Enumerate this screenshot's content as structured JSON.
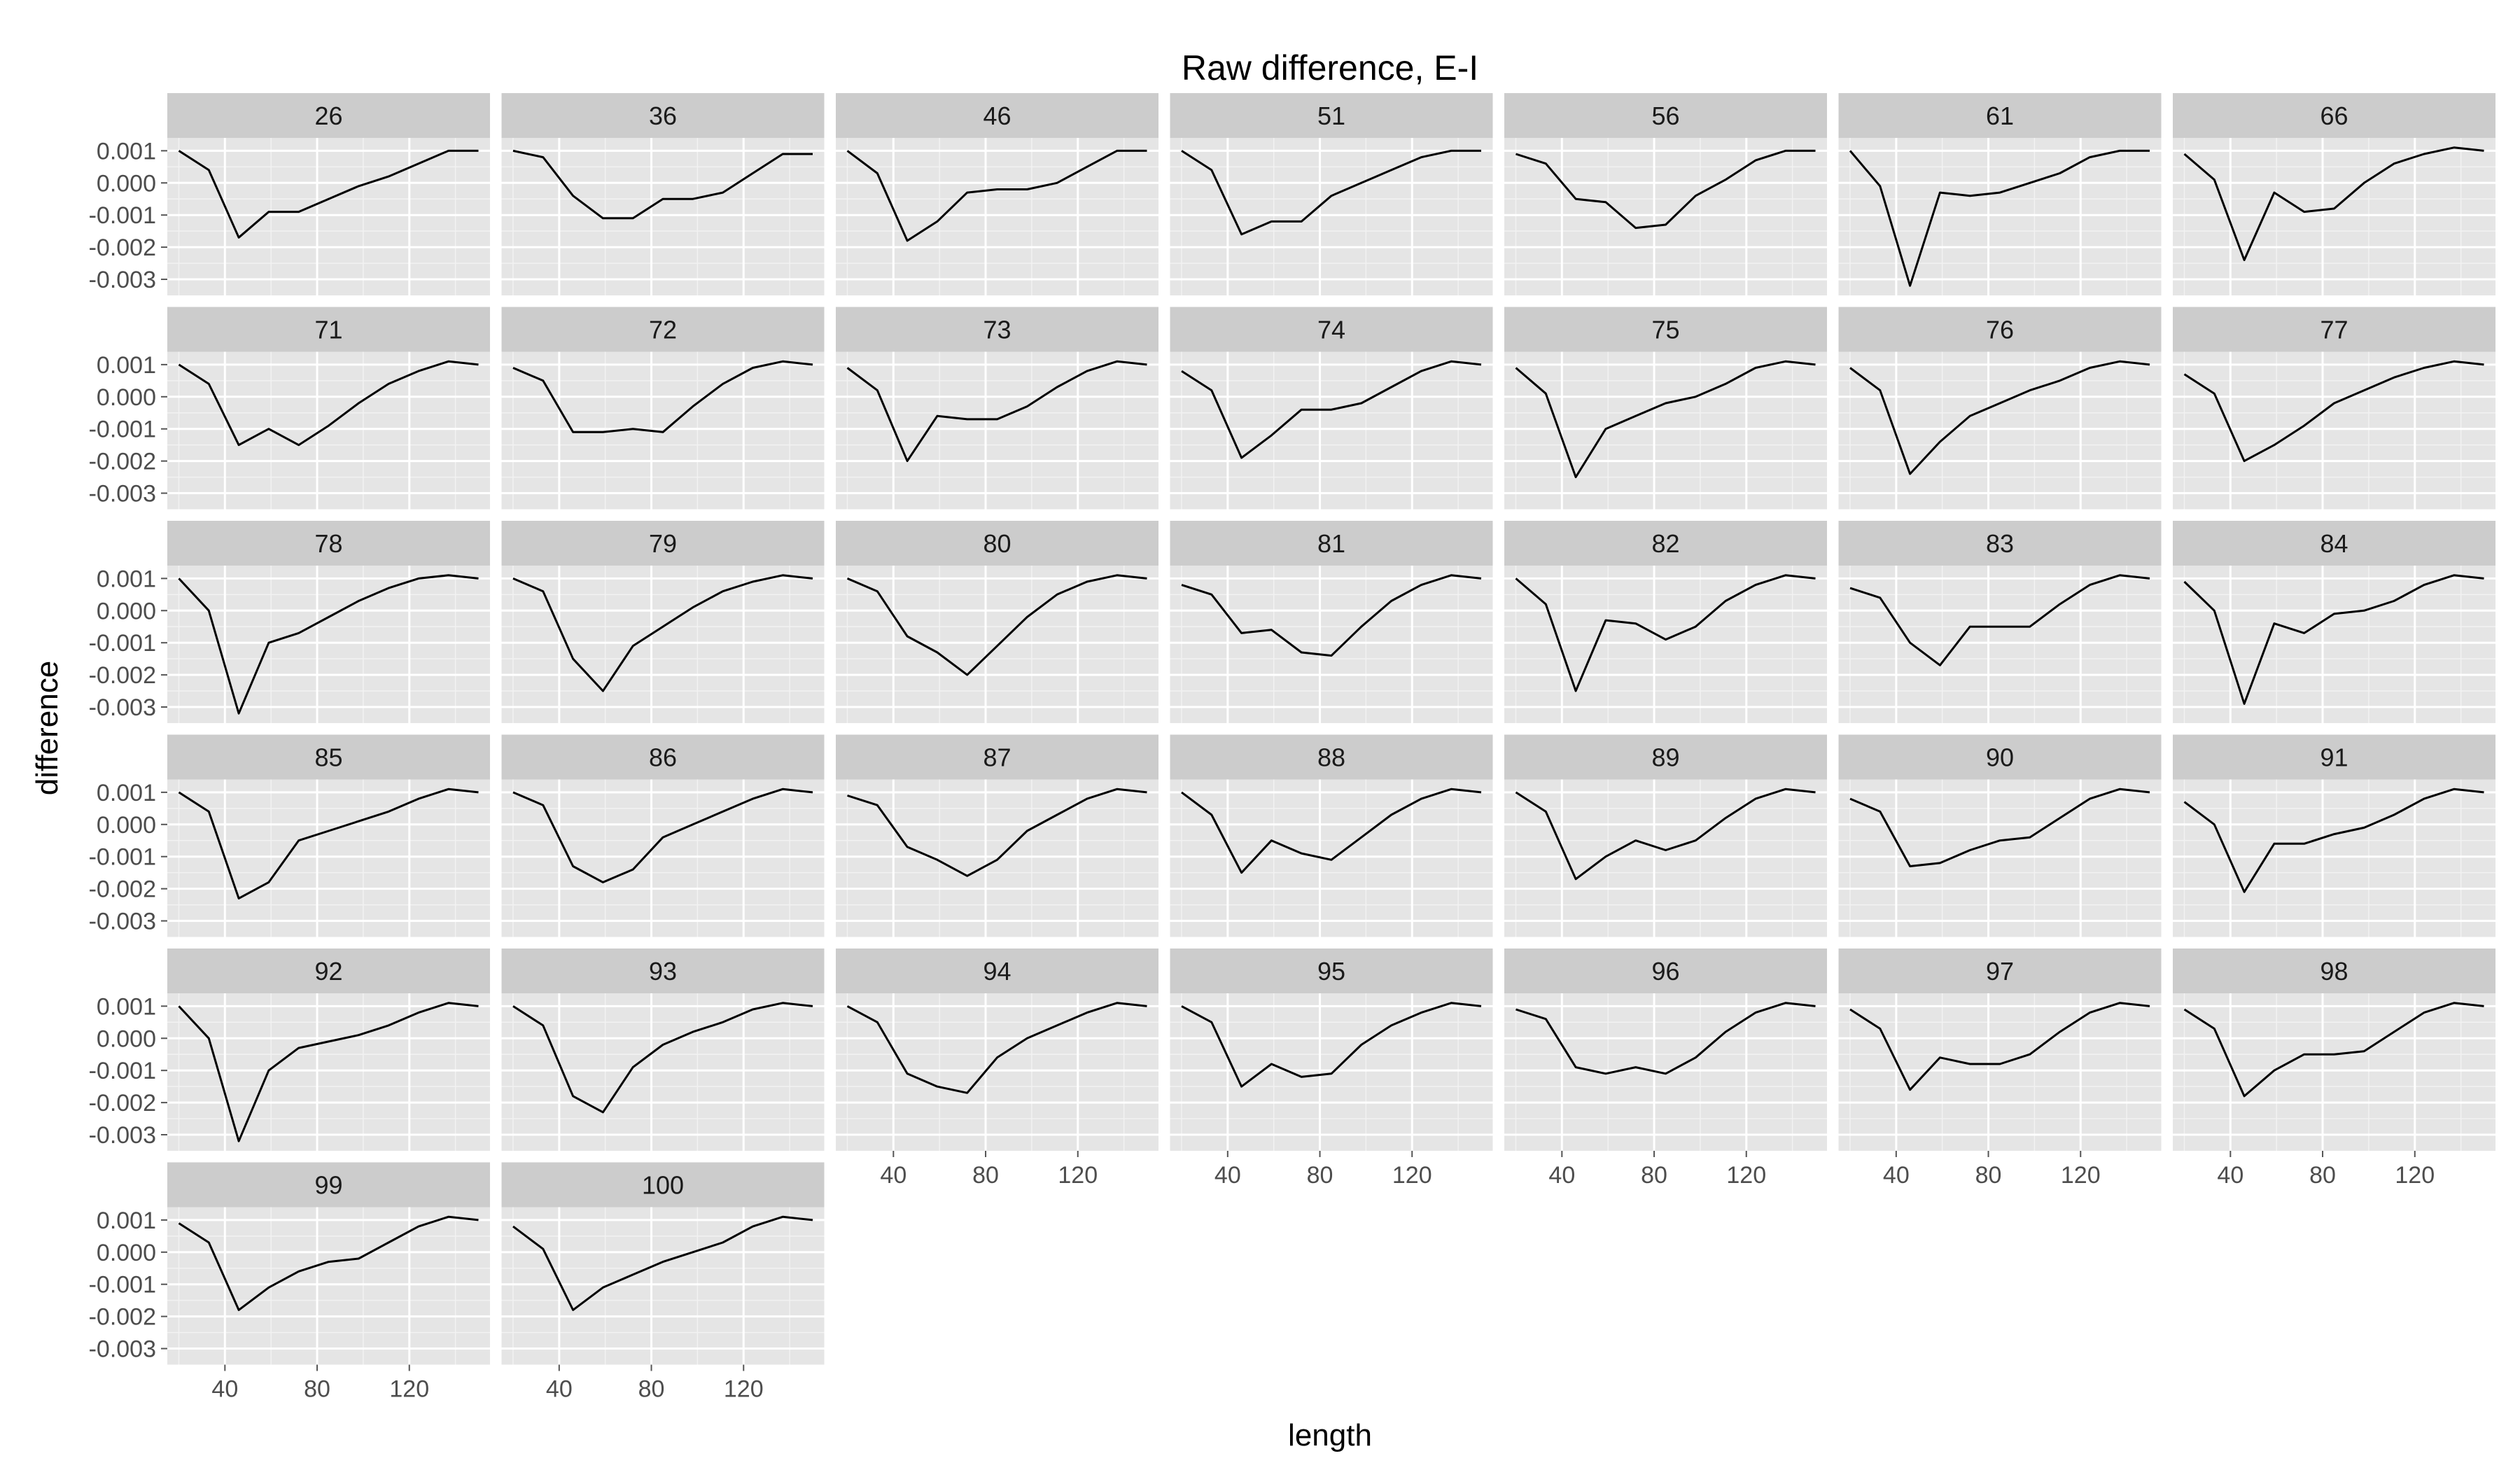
{
  "chart_data": {
    "type": "line",
    "title": "Raw difference, E-I",
    "xlabel": "length",
    "ylabel": "difference",
    "facet_layout": "wrap, 7 columns",
    "x": [
      20,
      33,
      46,
      59,
      72,
      85,
      98,
      111,
      124,
      137,
      150
    ],
    "xlim": [
      15,
      155
    ],
    "xticks": [
      40,
      80,
      120
    ],
    "ylim": [
      -0.0035,
      0.0014
    ],
    "yticks": [
      0.001,
      0.0,
      -0.001,
      -0.002,
      -0.003
    ],
    "ytick_labels": [
      "0.001",
      "0.000",
      "-0.001",
      "-0.002",
      "-0.003"
    ],
    "grid": true,
    "panel_background": "#e5e5e5",
    "strip_background": "#cccccc",
    "line_color": "#000000",
    "panels": [
      {
        "label": "26",
        "values": [
          0.001,
          0.0004,
          -0.0017,
          -0.0009,
          -0.0009,
          -0.0005,
          -0.0001,
          0.0002,
          0.0006,
          0.001,
          0.001
        ]
      },
      {
        "label": "36",
        "values": [
          0.001,
          0.0008,
          -0.0004,
          -0.0011,
          -0.0011,
          -0.0005,
          -0.0005,
          -0.0003,
          0.0003,
          0.0009,
          0.0009
        ]
      },
      {
        "label": "46",
        "values": [
          0.001,
          0.0003,
          -0.0018,
          -0.0012,
          -0.0003,
          -0.0002,
          -0.0002,
          0.0,
          0.0005,
          0.001,
          0.001
        ]
      },
      {
        "label": "51",
        "values": [
          0.001,
          0.0004,
          -0.0016,
          -0.0012,
          -0.0012,
          -0.0004,
          0.0,
          0.0004,
          0.0008,
          0.001,
          0.001
        ]
      },
      {
        "label": "56",
        "values": [
          0.0009,
          0.0006,
          -0.0005,
          -0.0006,
          -0.0014,
          -0.0013,
          -0.0004,
          0.0001,
          0.0007,
          0.001,
          0.001
        ]
      },
      {
        "label": "61",
        "values": [
          0.001,
          -0.0001,
          -0.0032,
          -0.0003,
          -0.0004,
          -0.0003,
          0.0,
          0.0003,
          0.0008,
          0.001,
          0.001
        ]
      },
      {
        "label": "66",
        "values": [
          0.0009,
          0.0001,
          -0.0024,
          -0.0003,
          -0.0009,
          -0.0008,
          0.0,
          0.0006,
          0.0009,
          0.0011,
          0.001
        ]
      },
      {
        "label": "71",
        "values": [
          0.001,
          0.0004,
          -0.0015,
          -0.001,
          -0.0015,
          -0.0009,
          -0.0002,
          0.0004,
          0.0008,
          0.0011,
          0.001
        ]
      },
      {
        "label": "72",
        "values": [
          0.0009,
          0.0005,
          -0.0011,
          -0.0011,
          -0.001,
          -0.0011,
          -0.0003,
          0.0004,
          0.0009,
          0.0011,
          0.001
        ]
      },
      {
        "label": "73",
        "values": [
          0.0009,
          0.0002,
          -0.002,
          -0.0006,
          -0.0007,
          -0.0007,
          -0.0003,
          0.0003,
          0.0008,
          0.0011,
          0.001
        ]
      },
      {
        "label": "74",
        "values": [
          0.0008,
          0.0002,
          -0.0019,
          -0.0012,
          -0.0004,
          -0.0004,
          -0.0002,
          0.0003,
          0.0008,
          0.0011,
          0.001
        ]
      },
      {
        "label": "75",
        "values": [
          0.0009,
          0.0001,
          -0.0025,
          -0.001,
          -0.0006,
          -0.0002,
          0.0,
          0.0004,
          0.0009,
          0.0011,
          0.001
        ]
      },
      {
        "label": "76",
        "values": [
          0.0009,
          0.0002,
          -0.0024,
          -0.0014,
          -0.0006,
          -0.0002,
          0.0002,
          0.0005,
          0.0009,
          0.0011,
          0.001
        ]
      },
      {
        "label": "77",
        "values": [
          0.0007,
          0.0001,
          -0.002,
          -0.0015,
          -0.0009,
          -0.0002,
          0.0002,
          0.0006,
          0.0009,
          0.0011,
          0.001
        ]
      },
      {
        "label": "78",
        "values": [
          0.001,
          0.0,
          -0.0032,
          -0.001,
          -0.0007,
          -0.0002,
          0.0003,
          0.0007,
          0.001,
          0.0011,
          0.001
        ]
      },
      {
        "label": "79",
        "values": [
          0.001,
          0.0006,
          -0.0015,
          -0.0025,
          -0.0011,
          -0.0005,
          0.0001,
          0.0006,
          0.0009,
          0.0011,
          0.001
        ]
      },
      {
        "label": "80",
        "values": [
          0.001,
          0.0006,
          -0.0008,
          -0.0013,
          -0.002,
          -0.0011,
          -0.0002,
          0.0005,
          0.0009,
          0.0011,
          0.001
        ]
      },
      {
        "label": "81",
        "values": [
          0.0008,
          0.0005,
          -0.0007,
          -0.0006,
          -0.0013,
          -0.0014,
          -0.0005,
          0.0003,
          0.0008,
          0.0011,
          0.001
        ]
      },
      {
        "label": "82",
        "values": [
          0.001,
          0.0002,
          -0.0025,
          -0.0003,
          -0.0004,
          -0.0009,
          -0.0005,
          0.0003,
          0.0008,
          0.0011,
          0.001
        ]
      },
      {
        "label": "83",
        "values": [
          0.0007,
          0.0004,
          -0.001,
          -0.0017,
          -0.0005,
          -0.0005,
          -0.0005,
          0.0002,
          0.0008,
          0.0011,
          0.001
        ]
      },
      {
        "label": "84",
        "values": [
          0.0009,
          0.0,
          -0.0029,
          -0.0004,
          -0.0007,
          -0.0001,
          0.0,
          0.0003,
          0.0008,
          0.0011,
          0.001
        ]
      },
      {
        "label": "85",
        "values": [
          0.001,
          0.0004,
          -0.0023,
          -0.0018,
          -0.0005,
          -0.0002,
          0.0001,
          0.0004,
          0.0008,
          0.0011,
          0.001
        ]
      },
      {
        "label": "86",
        "values": [
          0.001,
          0.0006,
          -0.0013,
          -0.0018,
          -0.0014,
          -0.0004,
          0.0,
          0.0004,
          0.0008,
          0.0011,
          0.001
        ]
      },
      {
        "label": "87",
        "values": [
          0.0009,
          0.0006,
          -0.0007,
          -0.0011,
          -0.0016,
          -0.0011,
          -0.0002,
          0.0003,
          0.0008,
          0.0011,
          0.001
        ]
      },
      {
        "label": "88",
        "values": [
          0.001,
          0.0003,
          -0.0015,
          -0.0005,
          -0.0009,
          -0.0011,
          -0.0004,
          0.0003,
          0.0008,
          0.0011,
          0.001
        ]
      },
      {
        "label": "89",
        "values": [
          0.001,
          0.0004,
          -0.0017,
          -0.001,
          -0.0005,
          -0.0008,
          -0.0005,
          0.0002,
          0.0008,
          0.0011,
          0.001
        ]
      },
      {
        "label": "90",
        "values": [
          0.0008,
          0.0004,
          -0.0013,
          -0.0012,
          -0.0008,
          -0.0005,
          -0.0004,
          0.0002,
          0.0008,
          0.0011,
          0.001
        ]
      },
      {
        "label": "91",
        "values": [
          0.0007,
          0.0,
          -0.0021,
          -0.0006,
          -0.0006,
          -0.0003,
          -0.0001,
          0.0003,
          0.0008,
          0.0011,
          0.001
        ]
      },
      {
        "label": "92",
        "values": [
          0.001,
          0.0,
          -0.0032,
          -0.001,
          -0.0003,
          -0.0001,
          0.0001,
          0.0004,
          0.0008,
          0.0011,
          0.001
        ]
      },
      {
        "label": "93",
        "values": [
          0.001,
          0.0004,
          -0.0018,
          -0.0023,
          -0.0009,
          -0.0002,
          0.0002,
          0.0005,
          0.0009,
          0.0011,
          0.001
        ]
      },
      {
        "label": "94",
        "values": [
          0.001,
          0.0005,
          -0.0011,
          -0.0015,
          -0.0017,
          -0.0006,
          0.0,
          0.0004,
          0.0008,
          0.0011,
          0.001
        ]
      },
      {
        "label": "95",
        "values": [
          0.001,
          0.0005,
          -0.0015,
          -0.0008,
          -0.0012,
          -0.0011,
          -0.0002,
          0.0004,
          0.0008,
          0.0011,
          0.001
        ]
      },
      {
        "label": "96",
        "values": [
          0.0009,
          0.0006,
          -0.0009,
          -0.0011,
          -0.0009,
          -0.0011,
          -0.0006,
          0.0002,
          0.0008,
          0.0011,
          0.001
        ]
      },
      {
        "label": "97",
        "values": [
          0.0009,
          0.0003,
          -0.0016,
          -0.0006,
          -0.0008,
          -0.0008,
          -0.0005,
          0.0002,
          0.0008,
          0.0011,
          0.001
        ]
      },
      {
        "label": "98",
        "values": [
          0.0009,
          0.0003,
          -0.0018,
          -0.001,
          -0.0005,
          -0.0005,
          -0.0004,
          0.0002,
          0.0008,
          0.0011,
          0.001
        ]
      },
      {
        "label": "99",
        "values": [
          0.0009,
          0.0003,
          -0.0018,
          -0.0011,
          -0.0006,
          -0.0003,
          -0.0002,
          0.0003,
          0.0008,
          0.0011,
          0.001
        ]
      },
      {
        "label": "100",
        "values": [
          0.0008,
          0.0001,
          -0.0018,
          -0.0011,
          -0.0007,
          -0.0003,
          0.0,
          0.0003,
          0.0008,
          0.0011,
          0.001
        ]
      }
    ]
  }
}
